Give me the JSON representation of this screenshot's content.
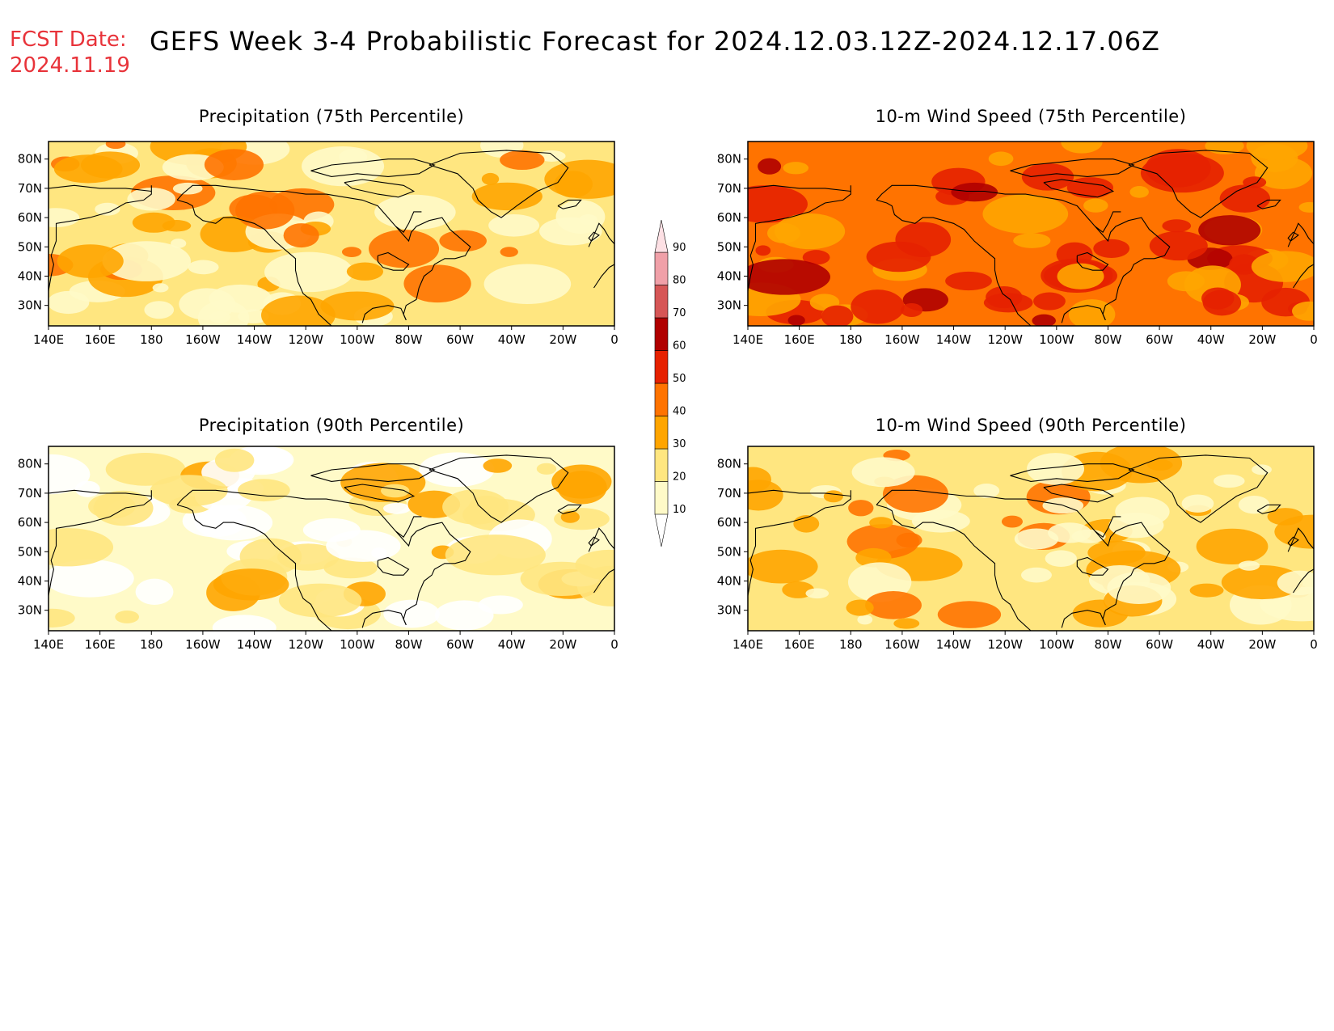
{
  "header": {
    "fcst_label": "FCST Date:",
    "fcst_date": "2024.11.19",
    "title": "GEFS Week 3-4 Probabilistic Forecast for 2024.12.03.12Z-2024.12.17.06Z"
  },
  "axes": {
    "x_ticks": [
      "140E",
      "160E",
      "180",
      "160W",
      "140W",
      "120W",
      "100W",
      "80W",
      "60W",
      "40W",
      "20W",
      "0"
    ],
    "y_ticks": [
      "80N",
      "70N",
      "60N",
      "50N",
      "40N",
      "30N"
    ]
  },
  "panels": [
    {
      "id": "precip75",
      "title": "Precipitation (75th Percentile)",
      "base_level": 20
    },
    {
      "id": "wind75",
      "title": "10-m Wind Speed (75th Percentile)",
      "base_level": 40
    },
    {
      "id": "precip90",
      "title": "Precipitation (90th Percentile)",
      "base_level": 10
    },
    {
      "id": "wind90",
      "title": "10-m Wind Speed (90th Percentile)",
      "base_level": 20
    }
  ],
  "colorbar": {
    "levels": [
      "10",
      "20",
      "30",
      "40",
      "50",
      "60",
      "70",
      "80",
      "90"
    ],
    "colors": [
      "#fffac8",
      "#ffe680",
      "#ffa500",
      "#ff7300",
      "#e62100",
      "#b00000",
      "#d65656",
      "#f0a0a8",
      "#fde0e4"
    ]
  }
}
